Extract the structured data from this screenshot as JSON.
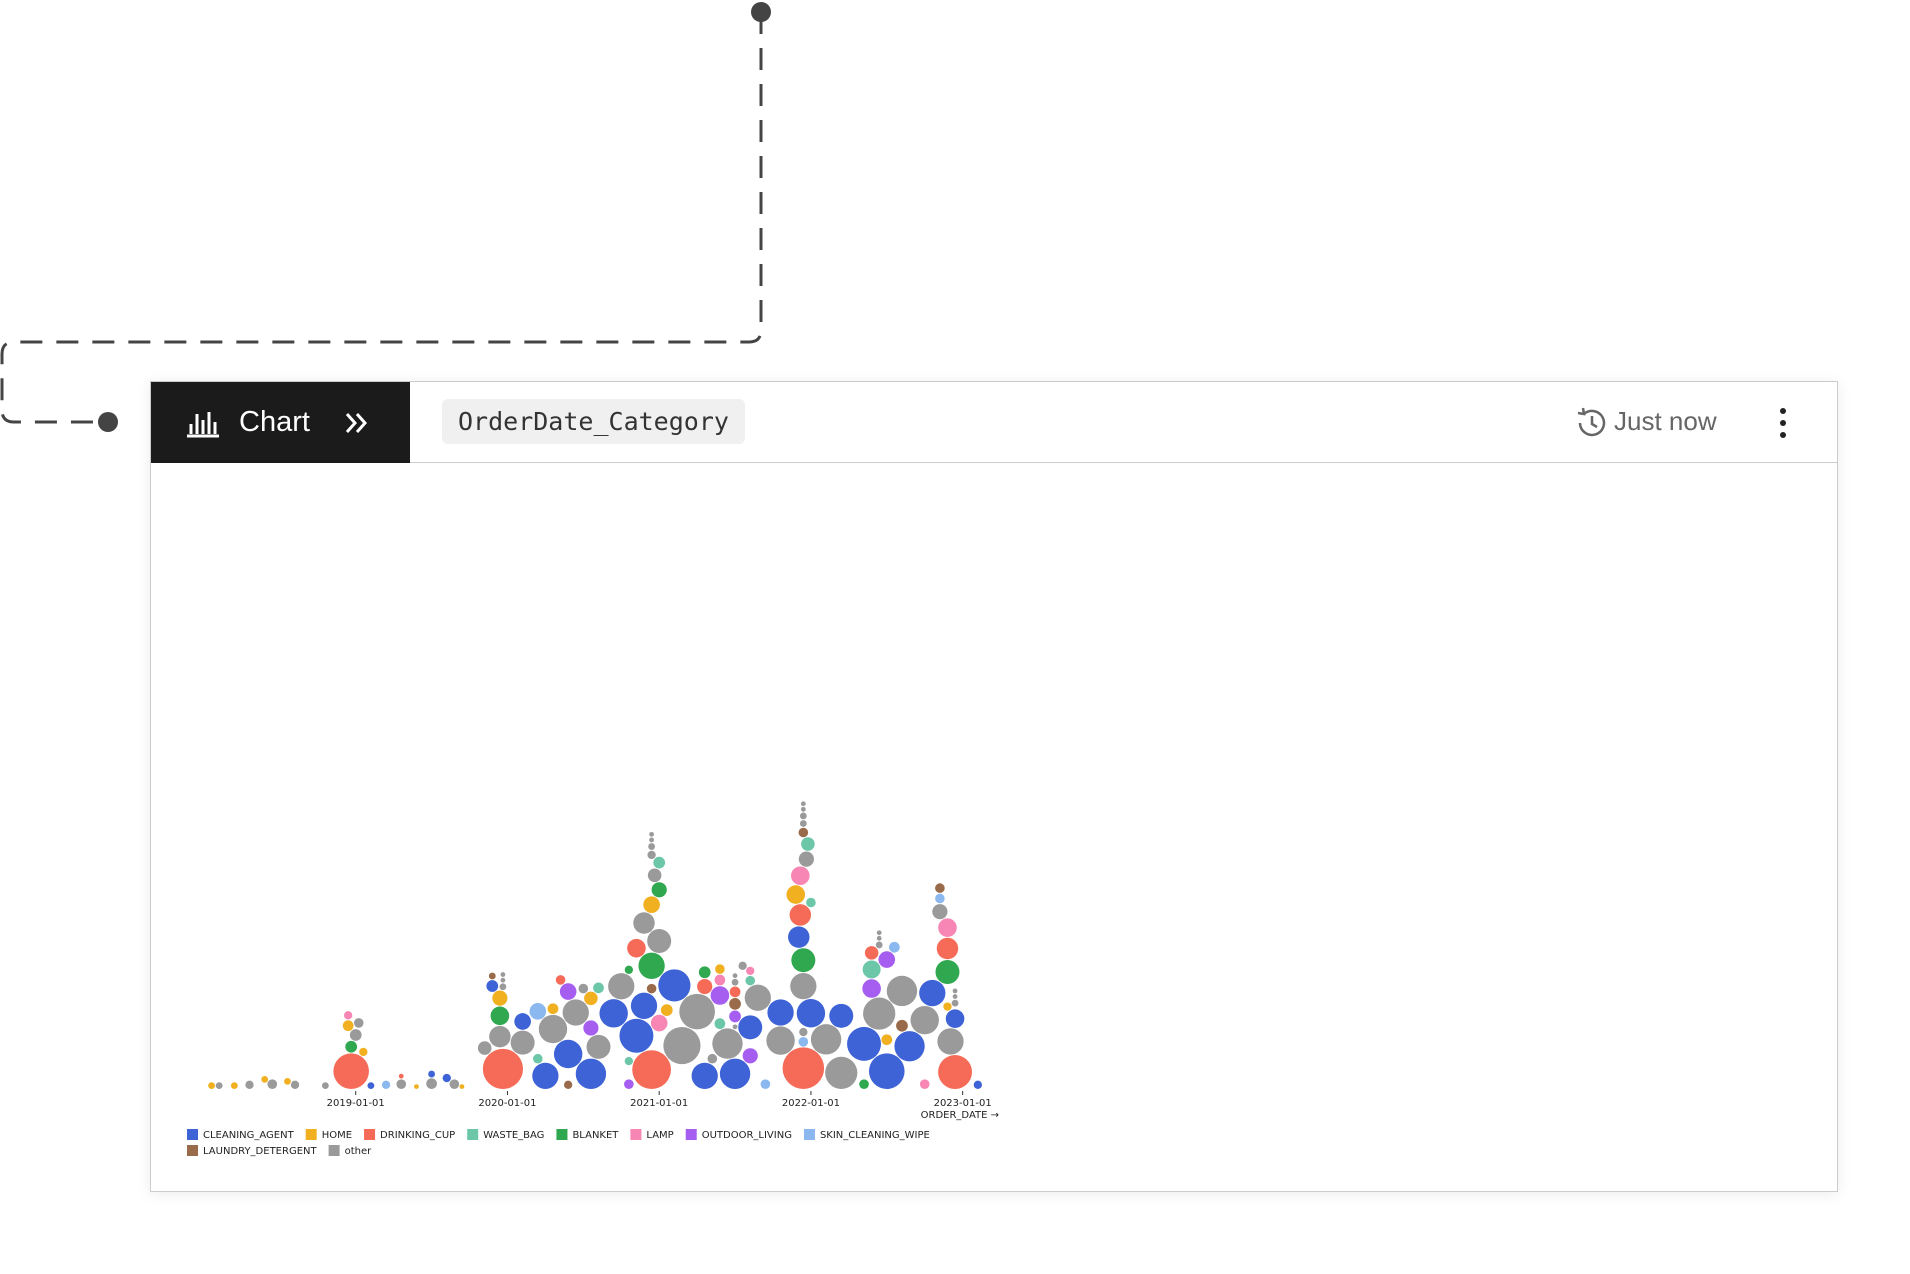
{
  "header": {
    "tab_label": "Chart",
    "query_name": "OrderDate_Category",
    "status": "Just now"
  },
  "chart_data": {
    "type": "beeswarm",
    "x_label": "ORDER_DATE →",
    "xlim": [
      2018.0,
      2023.2
    ],
    "xticks": [
      {
        "value": 2019,
        "label": "2019-01-01"
      },
      {
        "value": 2020,
        "label": "2020-01-01"
      },
      {
        "value": 2021,
        "label": "2021-01-01"
      },
      {
        "value": 2022,
        "label": "2022-01-01"
      },
      {
        "value": 2023,
        "label": "2023-01-01"
      }
    ],
    "series": [
      {
        "name": "CLEANING_AGENT",
        "color": "#3d63d6",
        "x": [
          2019.1,
          2019.5,
          2019.6,
          2019.9,
          2020.1,
          2020.25,
          2020.4,
          2020.55,
          2020.7,
          2020.85,
          2020.9,
          2021.1,
          2021.3,
          2021.5,
          2021.6,
          2021.8,
          2021.92,
          2022.0,
          2022.2,
          2022.35,
          2022.5,
          2022.65,
          2022.8,
          2022.95,
          2023.1
        ],
        "values": [
          2,
          2,
          3,
          6,
          12,
          30,
          35,
          40,
          35,
          50,
          30,
          45,
          30,
          40,
          25,
          30,
          20,
          35,
          25,
          50,
          55,
          40,
          30,
          15,
          3
        ]
      },
      {
        "name": "HOME",
        "color": "#f0b020",
        "x": [
          2018.05,
          2018.2,
          2018.4,
          2018.55,
          2018.95,
          2019.05,
          2019.4,
          2019.7,
          2019.95,
          2020.3,
          2020.55,
          2020.95,
          2021.05,
          2021.4,
          2021.9,
          2022.5,
          2022.9
        ],
        "values": [
          2,
          2,
          2,
          2,
          5,
          3,
          1,
          1,
          10,
          5,
          8,
          12,
          6,
          4,
          15,
          5,
          3
        ]
      },
      {
        "name": "DRINKING_CUP",
        "color": "#f56b58",
        "x": [
          2018.97,
          2019.97,
          2020.95,
          2021.95,
          2022.95,
          2020.85,
          2021.3,
          2021.93,
          2022.4,
          2022.9,
          2019.3,
          2020.35,
          2021.5
        ],
        "values": [
          55,
          70,
          65,
          75,
          50,
          15,
          10,
          20,
          8,
          20,
          1,
          4,
          5
        ]
      },
      {
        "name": "WASTE_BAG",
        "color": "#6cc6a8",
        "x": [
          2020.2,
          2020.6,
          2021.0,
          2021.4,
          2021.6,
          2021.98,
          2022.4,
          2022.0,
          2020.8
        ],
        "values": [
          4,
          5,
          6,
          5,
          4,
          8,
          14,
          4,
          3
        ]
      },
      {
        "name": "BLANKET",
        "color": "#2fa84f",
        "x": [
          2018.97,
          2019.95,
          2020.95,
          2021.95,
          2022.9,
          2021.3,
          2022.35,
          2020.8,
          2021.0
        ],
        "values": [
          6,
          15,
          30,
          25,
          25,
          6,
          4,
          3,
          10
        ]
      },
      {
        "name": "LAMP",
        "color": "#f786b4",
        "x": [
          2018.95,
          2021.0,
          2021.93,
          2022.9,
          2021.6,
          2021.4,
          2022.75
        ],
        "values": [
          3,
          12,
          15,
          15,
          3,
          5,
          4
        ]
      },
      {
        "name": "OUTDOOR_LIVING",
        "color": "#a55ef0",
        "x": [
          2020.4,
          2020.55,
          2021.4,
          2021.6,
          2022.4,
          2022.5,
          2020.8,
          2021.5
        ],
        "values": [
          12,
          10,
          15,
          10,
          15,
          12,
          4,
          6
        ]
      },
      {
        "name": "SKIN_CLEANING_WIPE",
        "color": "#8cb8f0",
        "x": [
          2019.2,
          2020.2,
          2021.7,
          2021.95,
          2022.55,
          2022.85
        ],
        "values": [
          3,
          12,
          4,
          4,
          5,
          4
        ]
      },
      {
        "name": "LAUNDRY_DETERGENT",
        "color": "#9a6b4b",
        "x": [
          2019.9,
          2020.4,
          2020.95,
          2021.5,
          2021.95,
          2022.6,
          2022.85
        ],
        "values": [
          2,
          3,
          4,
          6,
          4,
          6,
          4
        ]
      },
      {
        "name": "other",
        "color": "#9a9a9a",
        "x": [
          2018.1,
          2018.3,
          2018.45,
          2018.6,
          2018.8,
          2019.0,
          2019.02,
          2019.3,
          2019.5,
          2019.65,
          2019.85,
          2019.95,
          2020.1,
          2020.3,
          2020.45,
          2020.6,
          2020.75,
          2020.9,
          2021.0,
          2021.15,
          2021.25,
          2021.45,
          2021.65,
          2021.8,
          2021.95,
          2022.1,
          2022.2,
          2022.45,
          2022.6,
          2022.75,
          2022.92,
          2020.97,
          2021.97,
          2022.85,
          2021.35,
          2021.55,
          2020.5,
          2019.97,
          2019.97,
          2019.97,
          2020.95,
          2020.95,
          2020.95,
          2020.95,
          2021.95,
          2021.95,
          2021.95,
          2021.95,
          2021.95,
          2022.45,
          2022.45,
          2022.45,
          2022.95,
          2022.95,
          2022.95,
          2021.5,
          2021.5,
          2021.5
        ],
        "values": [
          2,
          3,
          4,
          3,
          2,
          6,
          4,
          4,
          5,
          4,
          8,
          20,
          25,
          35,
          30,
          25,
          30,
          20,
          25,
          60,
          55,
          40,
          30,
          35,
          30,
          40,
          45,
          45,
          40,
          35,
          30,
          8,
          10,
          10,
          4,
          3,
          4,
          2,
          1,
          1,
          3,
          2,
          1,
          1,
          3,
          2,
          2,
          1,
          1,
          2,
          1,
          1,
          2,
          1,
          1,
          2,
          1,
          1
        ]
      }
    ]
  }
}
